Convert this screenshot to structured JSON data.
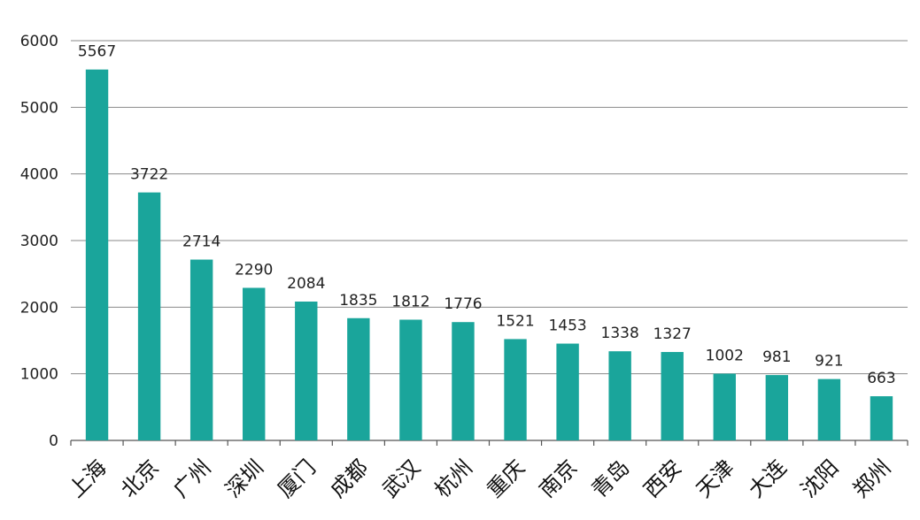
{
  "chart_data": {
    "type": "bar",
    "title": "",
    "xlabel": "",
    "ylabel": "",
    "ylim": [
      0,
      6000
    ],
    "yticks": [
      0,
      1000,
      2000,
      3000,
      4000,
      5000,
      6000
    ],
    "grid": true,
    "legend": "none",
    "categories": [
      "上海",
      "北京",
      "广州",
      "深圳",
      "厦门",
      "成都",
      "武汉",
      "杭州",
      "重庆",
      "南京",
      "青岛",
      "西安",
      "天津",
      "大连",
      "沈阳",
      "郑州"
    ],
    "values": [
      5567,
      3722,
      2714,
      2290,
      2084,
      1835,
      1812,
      1776,
      1521,
      1453,
      1338,
      1327,
      1002,
      981,
      921,
      663
    ],
    "colors": {
      "bar": "#1aa59b",
      "grid": "#8a8a8a",
      "text": "#222222"
    }
  }
}
